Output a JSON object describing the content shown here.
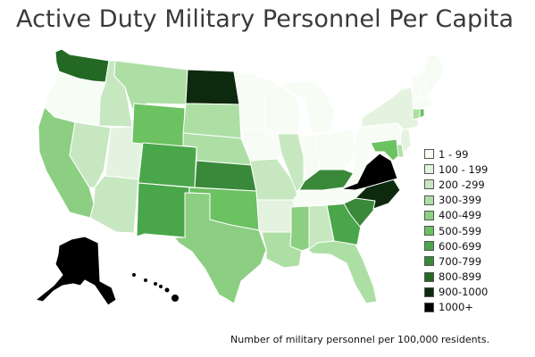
{
  "title": "Active Duty Military Personnel Per Capita",
  "footnote": "Number of military personnel per 100,000 residents.",
  "legend": [
    {
      "label": "1 - 99",
      "color": "#f7fcf5"
    },
    {
      "label": "100 - 199",
      "color": "#e4f3df"
    },
    {
      "label": "200 -299",
      "color": "#c7e7c0"
    },
    {
      "label": "300-399",
      "color": "#addfa5"
    },
    {
      "label": "400-499",
      "color": "#8ccf82"
    },
    {
      "label": "500-599",
      "color": "#6cc161"
    },
    {
      "label": "600-699",
      "color": "#4aa64a"
    },
    {
      "label": "700-799",
      "color": "#3a883a"
    },
    {
      "label": "800-899",
      "color": "#236823"
    },
    {
      "label": "900-1000",
      "color": "#0e2a0e"
    },
    {
      "label": "1000+",
      "color": "#000000"
    }
  ],
  "states": [
    {
      "id": "WA",
      "bin": 8
    },
    {
      "id": "OR",
      "bin": 0
    },
    {
      "id": "CA",
      "bin": 4
    },
    {
      "id": "ID",
      "bin": 2
    },
    {
      "id": "NV",
      "bin": 2
    },
    {
      "id": "UT",
      "bin": 1
    },
    {
      "id": "AZ",
      "bin": 2
    },
    {
      "id": "MT",
      "bin": 3
    },
    {
      "id": "WY",
      "bin": 5
    },
    {
      "id": "CO",
      "bin": 6
    },
    {
      "id": "NM",
      "bin": 6
    },
    {
      "id": "ND",
      "bin": 9
    },
    {
      "id": "SD",
      "bin": 3
    },
    {
      "id": "NE",
      "bin": 3
    },
    {
      "id": "KS",
      "bin": 7
    },
    {
      "id": "OK",
      "bin": 5
    },
    {
      "id": "TX",
      "bin": 4
    },
    {
      "id": "MN",
      "bin": 0
    },
    {
      "id": "IA",
      "bin": 0
    },
    {
      "id": "MO",
      "bin": 2
    },
    {
      "id": "AR",
      "bin": 1
    },
    {
      "id": "LA",
      "bin": 3
    },
    {
      "id": "WI",
      "bin": 0
    },
    {
      "id": "IL",
      "bin": 2
    },
    {
      "id": "MI",
      "bin": 0
    },
    {
      "id": "IN",
      "bin": 0
    },
    {
      "id": "OH",
      "bin": 0
    },
    {
      "id": "KY",
      "bin": 7
    },
    {
      "id": "TN",
      "bin": 0
    },
    {
      "id": "MS",
      "bin": 4
    },
    {
      "id": "AL",
      "bin": 2
    },
    {
      "id": "GA",
      "bin": 6
    },
    {
      "id": "FL",
      "bin": 3
    },
    {
      "id": "SC",
      "bin": 7
    },
    {
      "id": "NC",
      "bin": 9
    },
    {
      "id": "VA",
      "bin": 10
    },
    {
      "id": "WV",
      "bin": 0
    },
    {
      "id": "PA",
      "bin": 0
    },
    {
      "id": "NY",
      "bin": 1
    },
    {
      "id": "VT",
      "bin": 0
    },
    {
      "id": "NH",
      "bin": 0
    },
    {
      "id": "ME",
      "bin": 0
    },
    {
      "id": "MA",
      "bin": 0
    },
    {
      "id": "CT",
      "bin": 3
    },
    {
      "id": "RI",
      "bin": 5
    },
    {
      "id": "NJ",
      "bin": 1
    },
    {
      "id": "DE",
      "bin": 3
    },
    {
      "id": "MD",
      "bin": 5
    },
    {
      "id": "AK",
      "bin": 10
    },
    {
      "id": "HI",
      "bin": 10
    }
  ]
}
